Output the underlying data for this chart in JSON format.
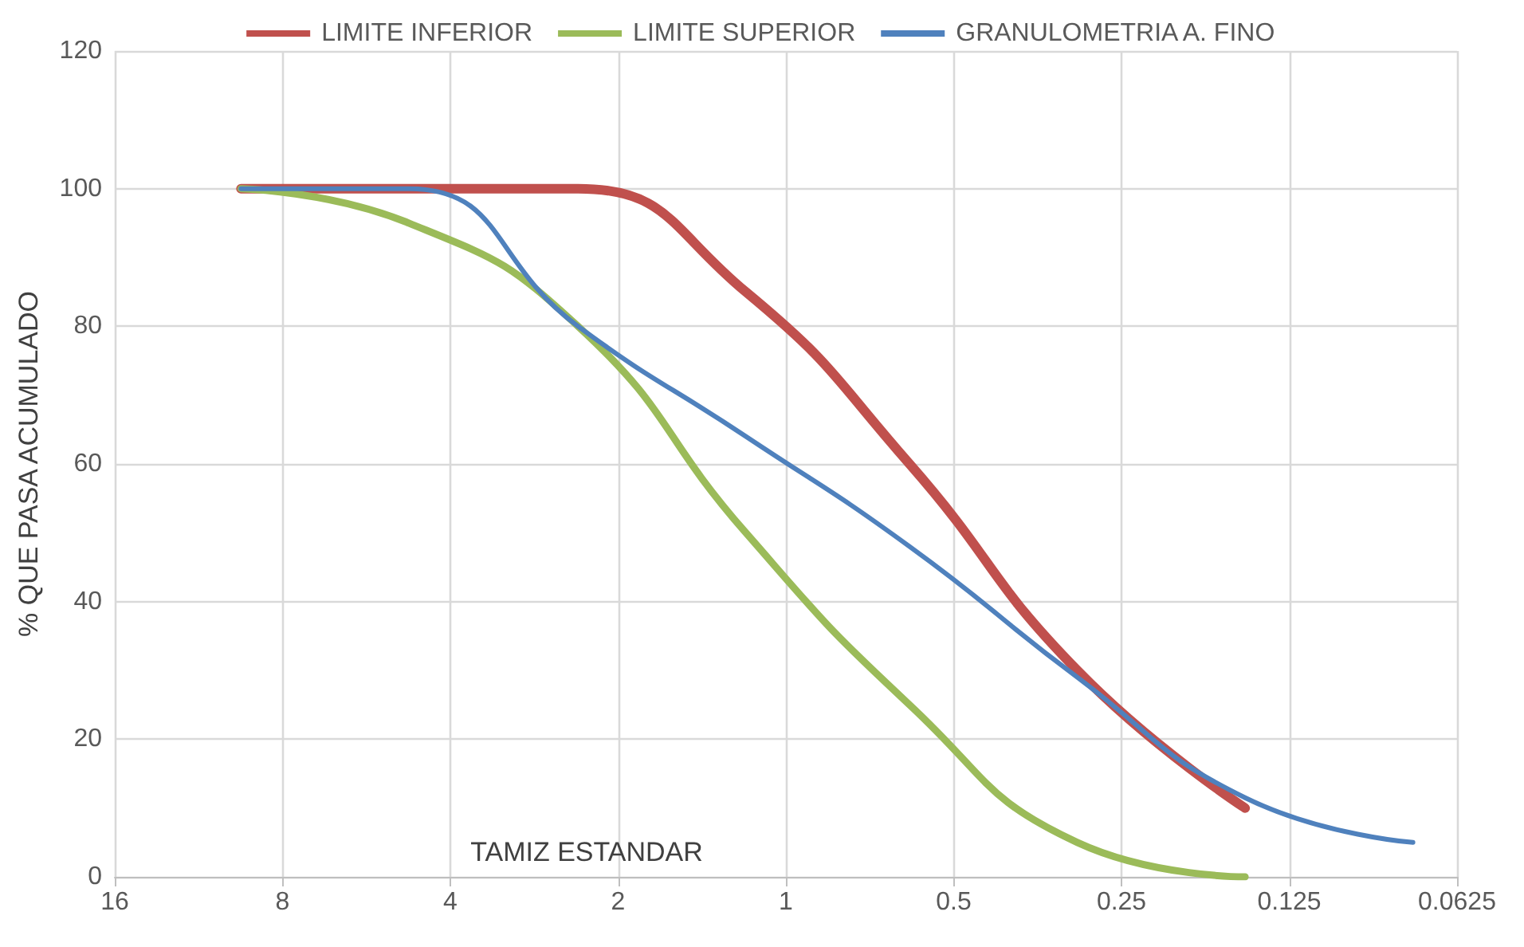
{
  "chart_data": {
    "type": "line",
    "xlabel": "TAMIZ ESTANDAR",
    "ylabel": "% QUE PASA ACUMULADO",
    "x": [
      9.5,
      4.75,
      2.36,
      1.18,
      0.6,
      0.3,
      0.15,
      0.075
    ],
    "series": [
      {
        "name": "LIMITE INFERIOR",
        "color": "#c0504d",
        "values": [
          100,
          100,
          100,
          85,
          60,
          30,
          10,
          null
        ]
      },
      {
        "name": "LIMITE SUPERIOR",
        "color": "#9bbb59",
        "values": [
          100,
          95,
          80,
          50,
          25,
          5,
          0,
          null
        ]
      },
      {
        "name": "GRANULOMETRIA A. FINO",
        "color": "#4f81bd",
        "values": [
          100,
          100,
          80,
          64,
          48,
          29,
          11.5,
          5
        ]
      }
    ],
    "log": "x",
    "xlim": [
      16,
      0.0625
    ],
    "xticks": [
      16,
      8,
      4,
      2,
      1,
      0.5,
      0.25,
      0.125,
      0.0625
    ],
    "ylim": [
      0,
      120
    ],
    "yticks": [
      0,
      20,
      40,
      60,
      80,
      100,
      120
    ],
    "grid": true,
    "legend": "top",
    "marker": "none",
    "line_style": "solid"
  }
}
